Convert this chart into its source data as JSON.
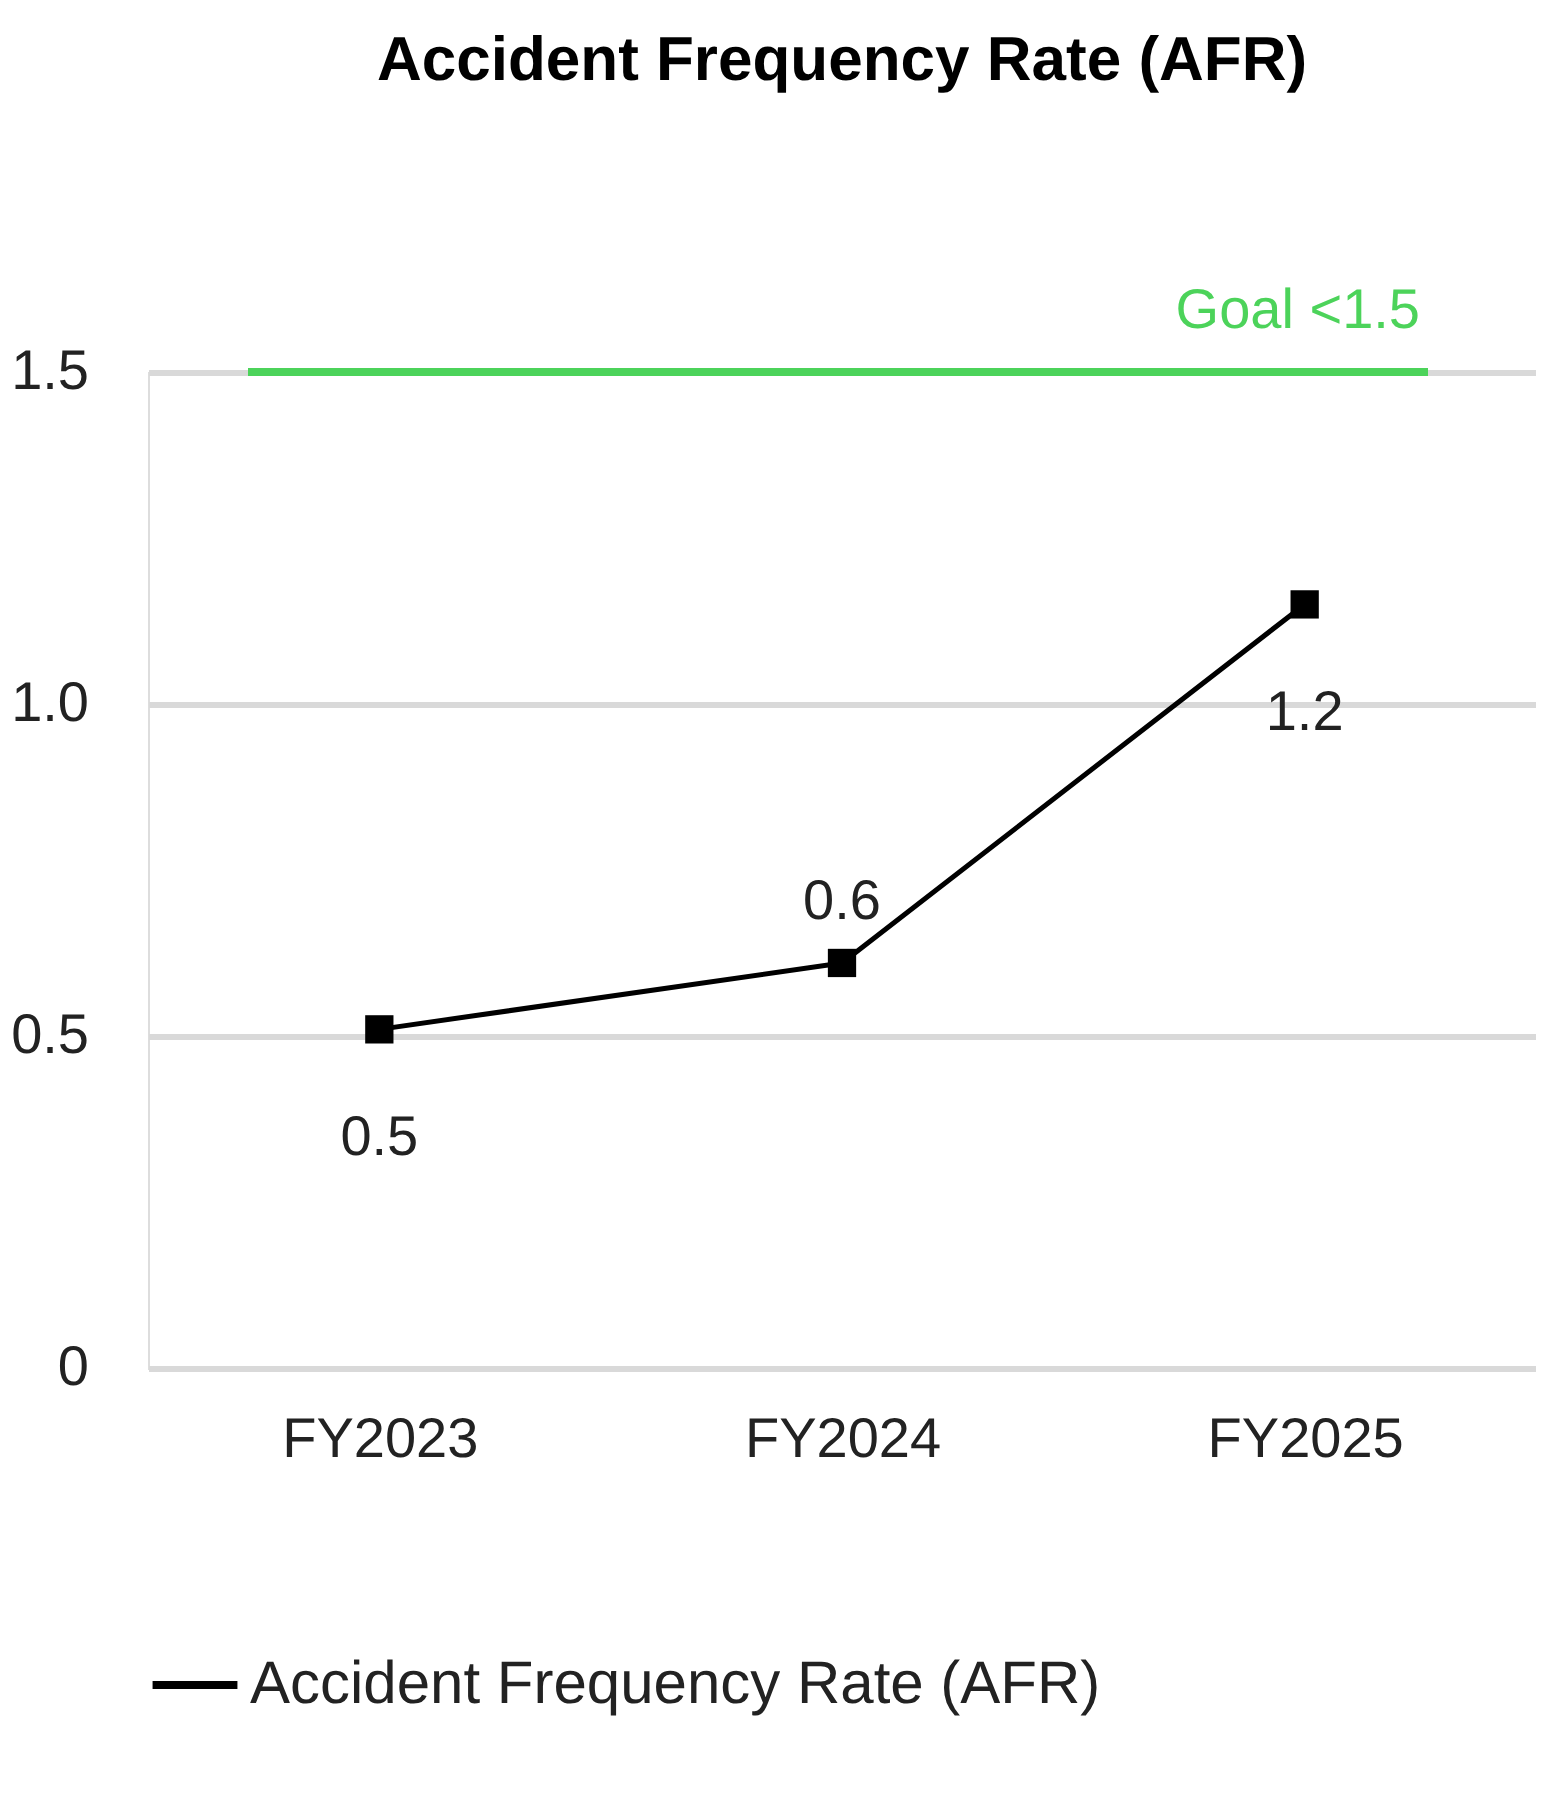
{
  "chart_data": {
    "type": "line",
    "title": "Accident Frequency Rate (AFR)",
    "categories": [
      "FY2023",
      "FY2024",
      "FY2025"
    ],
    "series": [
      {
        "name": "Accident Frequency Rate (AFR)",
        "color": "#000000",
        "values": [
          0.51,
          0.61,
          1.15
        ],
        "value_labels": [
          "0.5",
          "0.6",
          "1.2"
        ]
      }
    ],
    "ylim": [
      0,
      1.5
    ],
    "yticks": [
      0,
      {
        "value": 0.5,
        "label": "0.5"
      },
      {
        "value": 1,
        "label": "1.0"
      },
      {
        "value": 1.5,
        "label": "1.5"
      }
    ],
    "ref_lines": [
      {
        "axis": "y",
        "value": 1.5,
        "label": "Goal <1.5",
        "color": "#4cd35a"
      }
    ],
    "grid": "y",
    "legend": "bottom",
    "marker": "square",
    "line_style": "solid"
  }
}
